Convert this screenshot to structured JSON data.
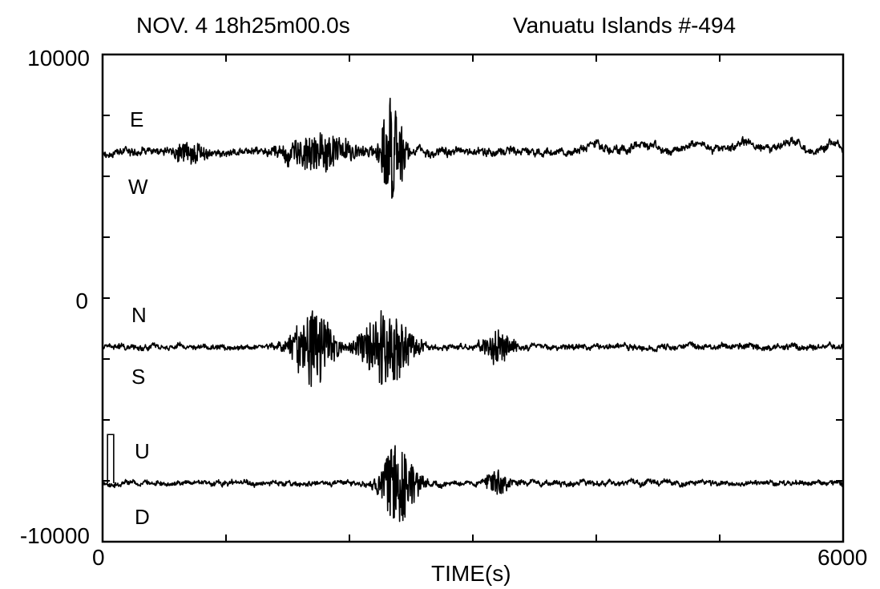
{
  "title": {
    "date_time": "NOV. 4   18h25m00.0s",
    "event": "Vanuatu Islands   #-494"
  },
  "chart_data": {
    "type": "line",
    "xlabel": "TIME(s)",
    "ylabel": "",
    "xlim": [
      0,
      6000
    ],
    "ylim": [
      -10000,
      10000
    ],
    "x_tick_labels": [
      "0",
      "6000"
    ],
    "y_tick_labels": [
      "10000",
      "0",
      "-10000"
    ],
    "grid": false,
    "series": [
      {
        "name": "E-W",
        "top_label": "E",
        "bottom_label": "W",
        "baseline": 6000,
        "noise": 280,
        "bursts": [
          {
            "t": 2350,
            "amp": 2300,
            "width": 90
          },
          {
            "t": 1750,
            "amp": 700,
            "width": 300
          },
          {
            "t": 700,
            "amp": 400,
            "width": 150
          }
        ],
        "swells": [
          {
            "t": 4000,
            "amp": 300
          },
          {
            "t": 4400,
            "amp": 300
          },
          {
            "t": 4800,
            "amp": 350
          },
          {
            "t": 5200,
            "amp": 400
          },
          {
            "t": 5550,
            "amp": 350
          },
          {
            "t": 5900,
            "amp": 300
          }
        ]
      },
      {
        "name": "N-S",
        "top_label": "N",
        "bottom_label": "S",
        "baseline": -2000,
        "noise": 200,
        "bursts": [
          {
            "t": 1700,
            "amp": 1700,
            "width": 160
          },
          {
            "t": 2300,
            "amp": 1600,
            "width": 200
          },
          {
            "t": 3200,
            "amp": 700,
            "width": 120
          }
        ],
        "swells": []
      },
      {
        "name": "U-D",
        "top_label": "U",
        "bottom_label": "D",
        "baseline": -7600,
        "noise": 180,
        "bursts": [
          {
            "t": 2400,
            "amp": 1700,
            "width": 140
          },
          {
            "t": 3200,
            "amp": 500,
            "width": 100
          }
        ],
        "swells": []
      }
    ]
  }
}
